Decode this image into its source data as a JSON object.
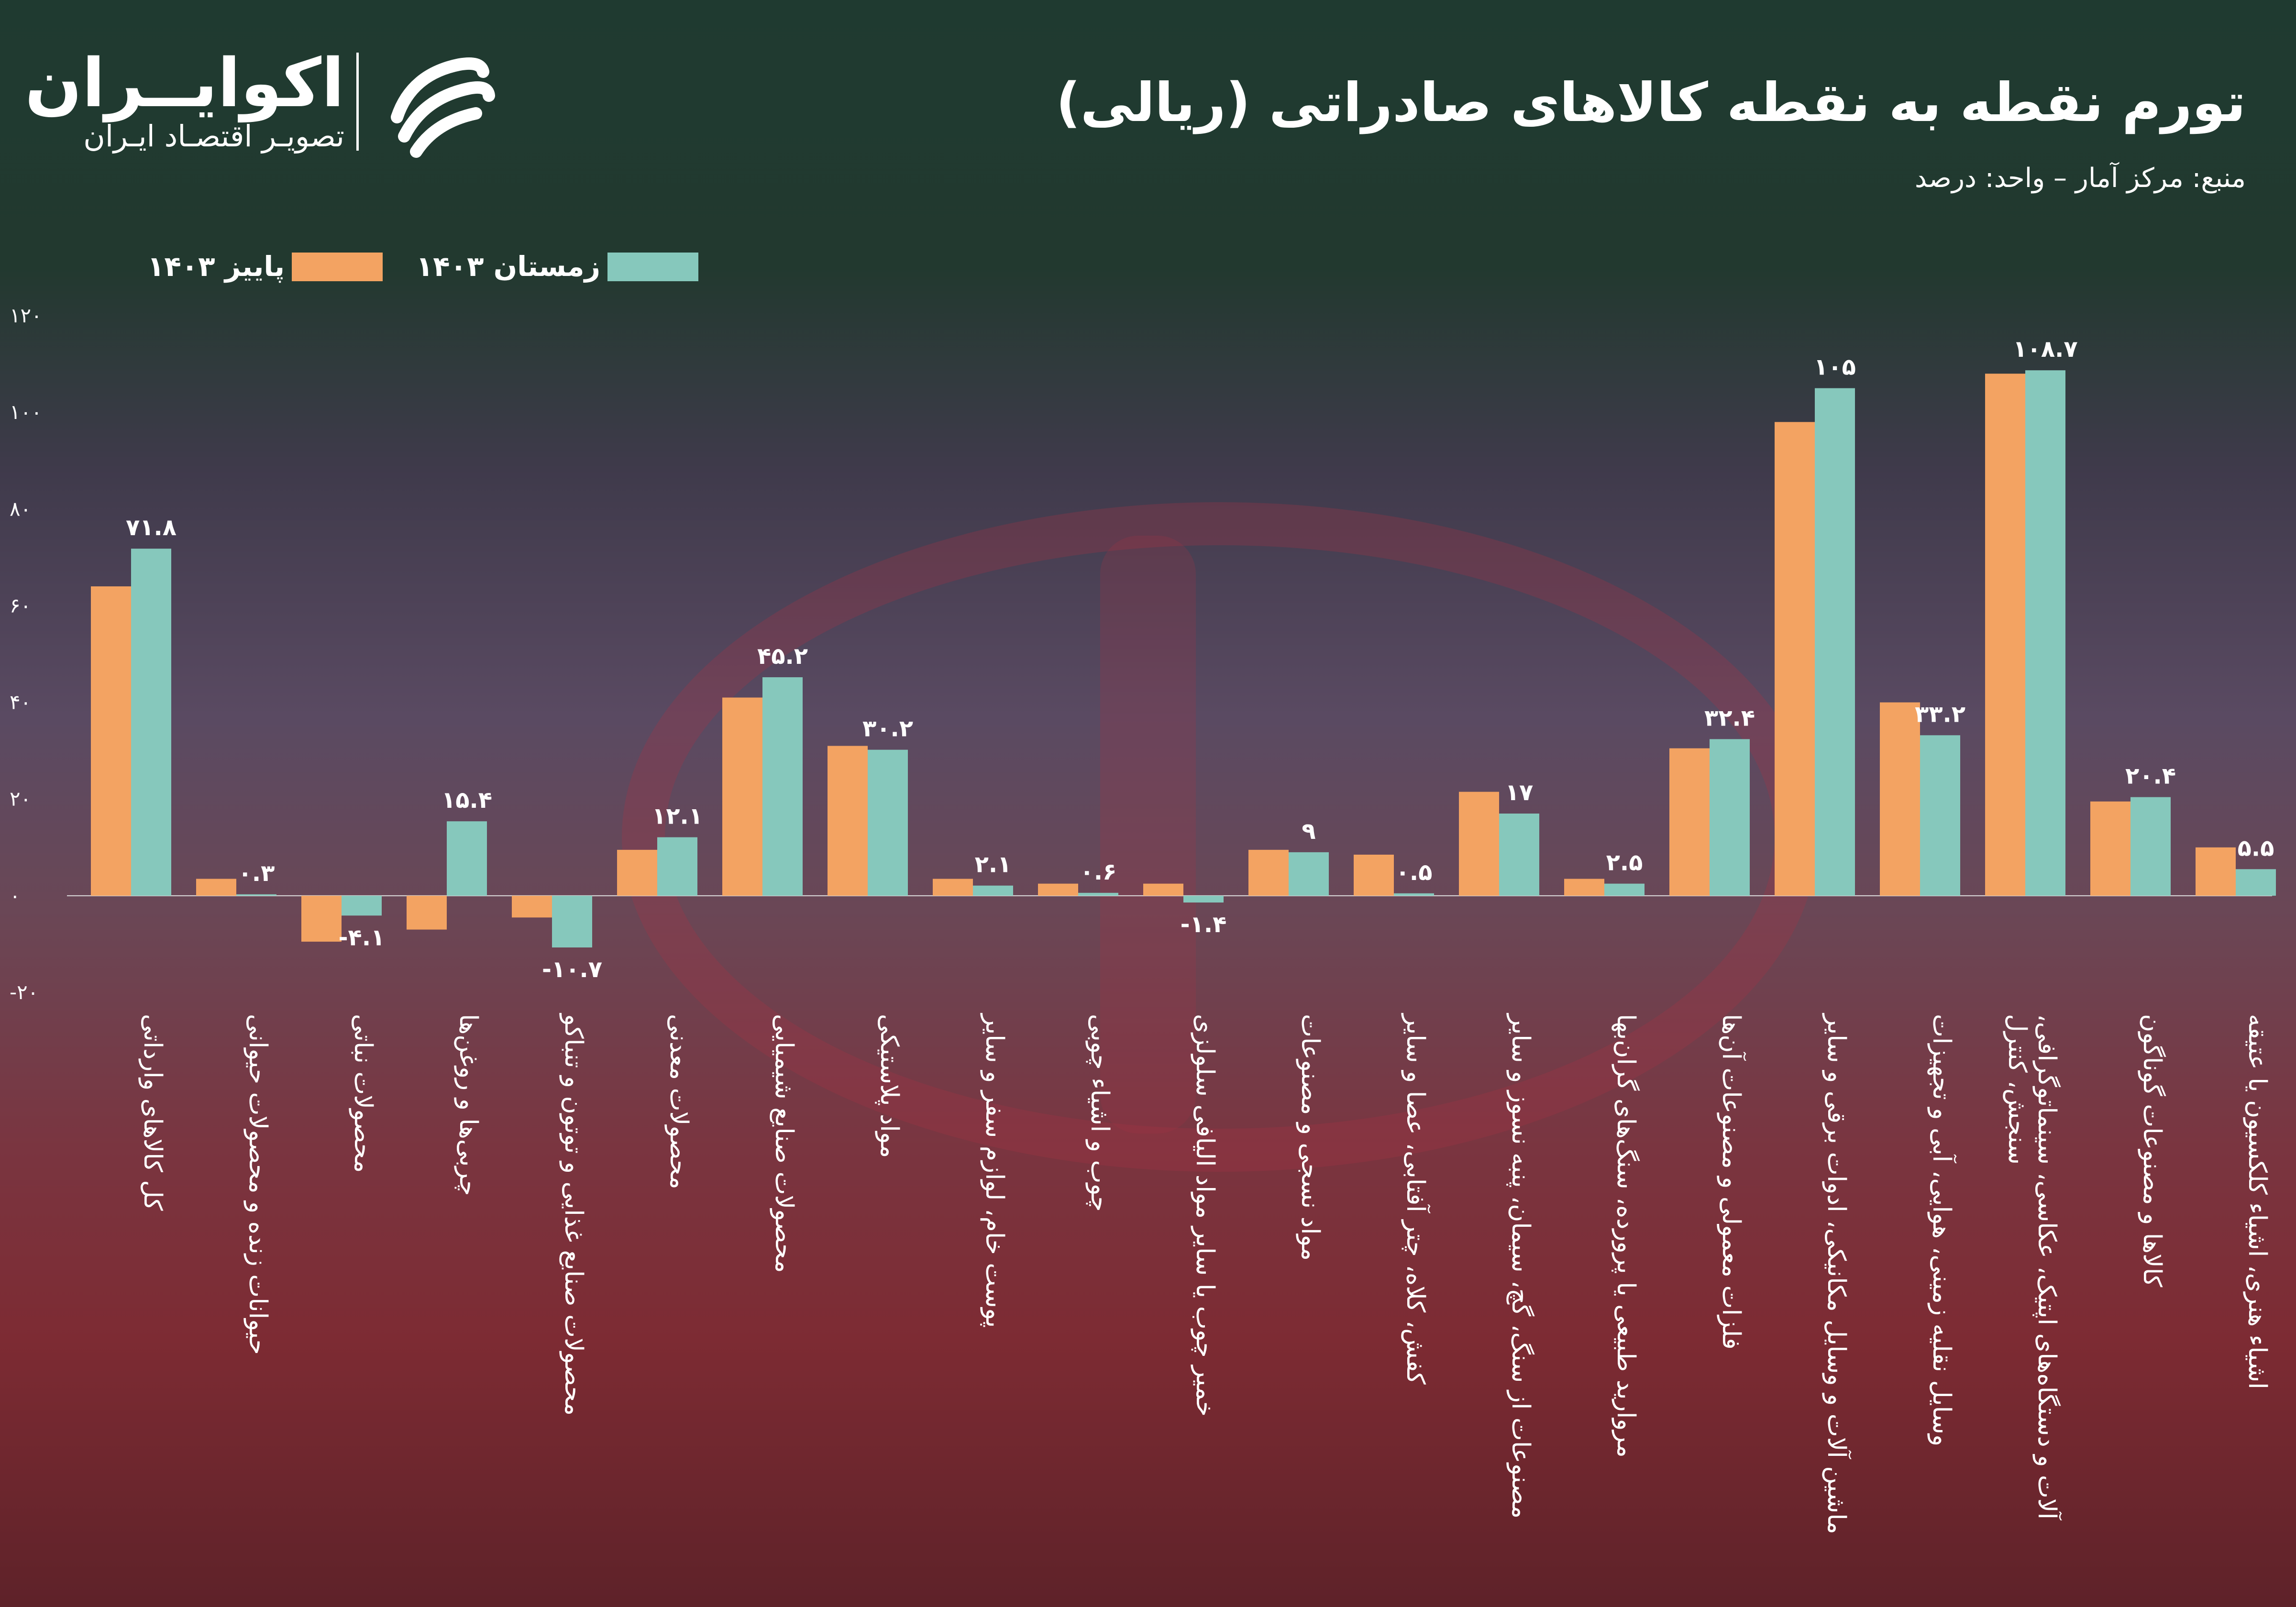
{
  "header": {
    "logo_name": "اکوایــران",
    "logo_tagline": "تصویـر اقتصـاد ایـران",
    "title": "تورم نقطه به نقطه کالاهای صادراتی (ریالی)",
    "subtitle": "منبع: مرکز آمار – واحد: درصد"
  },
  "colors": {
    "autumn": "#f3a362",
    "winter": "#86c8bc"
  },
  "chart_data": {
    "type": "bar",
    "title": "تورم نقطه به نقطه کالاهای صادراتی (ریالی)",
    "subtitle": "منبع: مرکز آمار – واحد: درصد",
    "ylim": [
      -20,
      120
    ],
    "yticks": [
      -20,
      0,
      20,
      40,
      60,
      80,
      100,
      120
    ],
    "ytick_labels": [
      "-۲۰",
      "۰",
      "۲۰",
      "۴۰",
      "۶۰",
      "۸۰",
      "۱۰۰",
      "۱۲۰"
    ],
    "grid": false,
    "legend_placement": "top-left",
    "categories": [
      "کل کالاهای وارداتی",
      "حیوانات زنده و محصولات حیوانی",
      "محصولات نباتی",
      "چربی‌ها و روغن‌ها",
      "محصولات صنایع غذایی و توتون و تنباکو",
      "محصولات معدنی",
      "محصولات صنایع شیمیایی",
      "مواد پلاستیکی",
      "پوست خام، لوازم سفر و سایر",
      "چوب و اشیاء چوبی",
      "خمیر چوب یا سایر مواد الیافی سلولزی",
      "مواد نسجی و مصنوعات",
      "کفش، کلاه، چتر آفتابی، عصا و سایر",
      "مصنوعات از سنگ، گچ، سیمان، پنبه نسوز و سایر",
      "مروارید طبیعی یا پرورده، سنگ‌های گران‌بها",
      "فلزات معمولی و مصنوعات آن‌ها",
      "ماشین آلات و وسایل مکانیکی، ادوات برقی و سایر",
      "وسایل نقلیه زمینی، هوایی، آبی و تجهیزات",
      "آلات و دستگاه‌های اپتیک، عکاسی، سینماتوگرافی، سنجش، کنترل",
      "کالاها و مصنوعات گوناگون",
      "اشیاء هنری، اشیاء کلکسیون یا عتیقه"
    ],
    "series": [
      {
        "name": "پاییز ۱۴۰۳",
        "color": "#f3a362",
        "values": [
          64,
          3.5,
          -9.5,
          -7,
          -4.5,
          9.5,
          41,
          31,
          3.5,
          2.5,
          2.5,
          9.5,
          8.5,
          21.5,
          3.5,
          30.5,
          98,
          40,
          108,
          19.5,
          10
        ]
      },
      {
        "name": "زمستان ۱۴۰۳",
        "color": "#86c8bc",
        "values": [
          71.8,
          0.3,
          -4.1,
          15.4,
          -10.7,
          12.1,
          45.2,
          30.2,
          2.1,
          0.6,
          -1.4,
          9,
          0.5,
          17,
          2.5,
          32.4,
          105,
          33.2,
          108.7,
          20.4,
          5.5
        ]
      }
    ],
    "data_labels": [
      "۷۱.۸",
      "۰.۳",
      "-۴.۱",
      "۱۵.۴",
      "-۱۰.۷",
      "۱۲.۱",
      "۴۵.۲",
      "۳۰.۲",
      "۲.۱",
      "۰.۶",
      "-۱.۴",
      "۹",
      "۰.۵",
      "۱۷",
      "۲.۵",
      "۳۲.۴",
      "۱۰۵",
      "۳۳.۲",
      "۱۰۸.۷",
      "۲۰.۴",
      "۵.۵"
    ]
  }
}
